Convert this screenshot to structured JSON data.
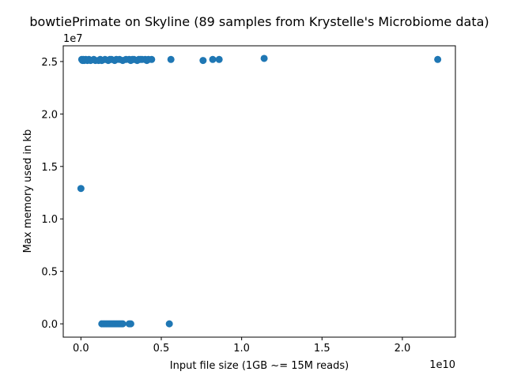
{
  "chart_data": {
    "type": "scatter",
    "title": "bowtiePrimate on Skyline (89 samples from Krystelle's Microbiome data)",
    "xlabel": "Input file size (1GB ~= 15M reads)",
    "ylabel": "Max memory used in kb",
    "x_offset_label": "1e10",
    "y_offset_label": "1e7",
    "xlim": [
      -0.11,
      2.33
    ],
    "ylim": [
      -0.127,
      2.65
    ],
    "xticks": [
      0.0,
      0.5,
      1.0,
      1.5,
      2.0
    ],
    "xtick_labels": [
      "0.0",
      "0.5",
      "1.0",
      "1.5",
      "2.0"
    ],
    "yticks": [
      0.0,
      0.5,
      1.0,
      1.5,
      2.0,
      2.5
    ],
    "ytick_labels": [
      "0.0",
      "0.5",
      "1.0",
      "1.5",
      "2.0",
      "2.5"
    ],
    "grid": false,
    "color": "#1f77b4",
    "series": [
      {
        "x": [
          0.005,
          0.01,
          0.015,
          0.02,
          0.03,
          0.04,
          0.05,
          0.06,
          0.08,
          0.09,
          0.11,
          0.12,
          0.13,
          0.15,
          0.17,
          0.18,
          0.19,
          0.21,
          0.22,
          0.24,
          0.26,
          0.28,
          0.3,
          0.31,
          0.32,
          0.33,
          0.35,
          0.36,
          0.37,
          0.38,
          0.4,
          0.41,
          0.42,
          0.44,
          0.56,
          0.76,
          0.82,
          0.86,
          1.14,
          2.22,
          0.13,
          0.14,
          0.15,
          0.16,
          0.17,
          0.18,
          0.19,
          0.2,
          0.21,
          0.22,
          0.23,
          0.24,
          0.25,
          0.26,
          0.3,
          0.31,
          0.55,
          0.0
        ],
        "y": [
          2.52,
          2.51,
          2.52,
          2.51,
          2.52,
          2.51,
          2.52,
          2.51,
          2.52,
          2.51,
          2.51,
          2.52,
          2.51,
          2.52,
          2.51,
          2.52,
          2.52,
          2.51,
          2.52,
          2.52,
          2.51,
          2.52,
          2.52,
          2.51,
          2.52,
          2.52,
          2.51,
          2.52,
          2.52,
          2.52,
          2.52,
          2.51,
          2.52,
          2.52,
          2.52,
          2.51,
          2.52,
          2.52,
          2.53,
          2.52,
          0.0,
          0.0,
          0.0,
          0.0,
          0.0,
          0.0,
          0.0,
          0.0,
          0.0,
          0.0,
          0.0,
          0.0,
          0.0,
          0.0,
          0.0,
          0.0,
          0.0,
          1.29
        ]
      }
    ]
  }
}
